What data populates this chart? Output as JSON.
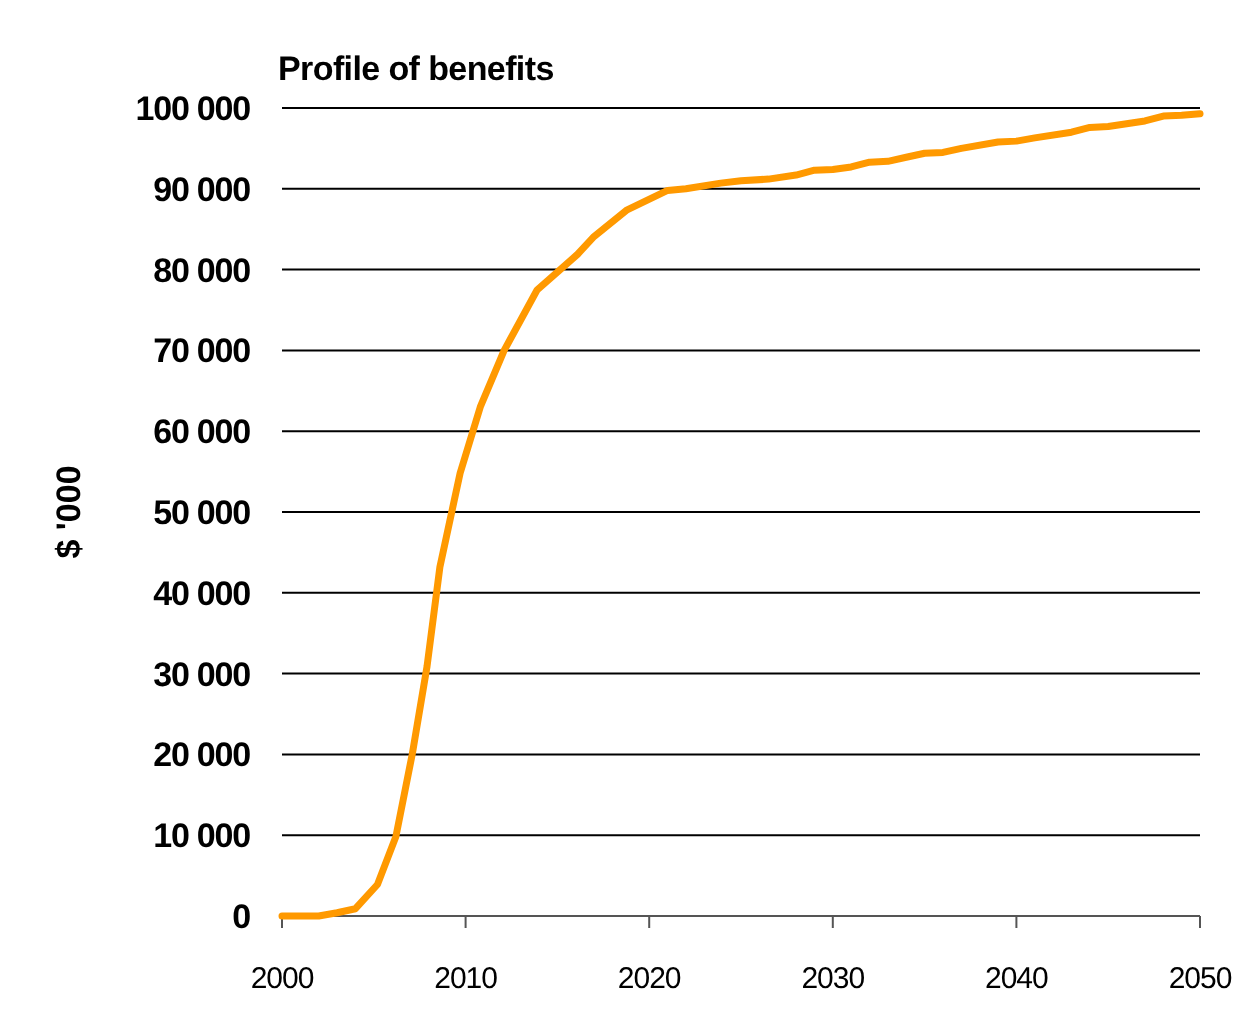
{
  "chart_data": {
    "type": "line",
    "title": "Profile of benefits",
    "ylabel": "$ '000",
    "x": [
      2000,
      2002,
      2003,
      2004,
      2005.2,
      2006.2,
      2007.1,
      2007.9,
      2008.6,
      2009.7,
      2010.8,
      2012.1,
      2013.9,
      2016.1,
      2017,
      2018.8,
      2021,
      2022,
      2023.9,
      2025,
      2026.5,
      2028,
      2029,
      2030,
      2031,
      2032,
      2033,
      2034,
      2035,
      2036,
      2037,
      2039,
      2040,
      2041,
      2043,
      2044,
      2045,
      2047,
      2048,
      2049,
      2050
    ],
    "series": [
      {
        "color": "#ff9900",
        "values": [
          0,
          0,
          400,
          900,
          3900,
          9800,
          20100,
          30900,
          43200,
          54800,
          63000,
          70000,
          77500,
          81900,
          84100,
          87400,
          89800,
          90000,
          90700,
          91000,
          91200,
          91700,
          92300,
          92400,
          92700,
          93300,
          93400,
          93900,
          94400,
          94500,
          95000,
          95800,
          95900,
          96300,
          97000,
          97600,
          97700,
          98400,
          99000,
          99100,
          99300
        ]
      }
    ],
    "xlim": [
      2000,
      2050
    ],
    "xticks": [
      2000,
      2010,
      2020,
      2030,
      2040,
      2050
    ],
    "ylim": [
      0,
      100000
    ],
    "yticks": [
      {
        "value": 0,
        "label": "0"
      },
      {
        "value": 10000,
        "label": "10 000"
      },
      {
        "value": 20000,
        "label": "20 000"
      },
      {
        "value": 30000,
        "label": "30 000"
      },
      {
        "value": 40000,
        "label": "40 000"
      },
      {
        "value": 50000,
        "label": "50 000"
      },
      {
        "value": 60000,
        "label": "60 000"
      },
      {
        "value": 70000,
        "label": "70 000"
      },
      {
        "value": 80000,
        "label": "80 000"
      },
      {
        "value": 90000,
        "label": "90 000"
      },
      {
        "value": 100000,
        "label": "100 000"
      }
    ],
    "grid": "y",
    "marker": "none",
    "line_style": "solid"
  }
}
